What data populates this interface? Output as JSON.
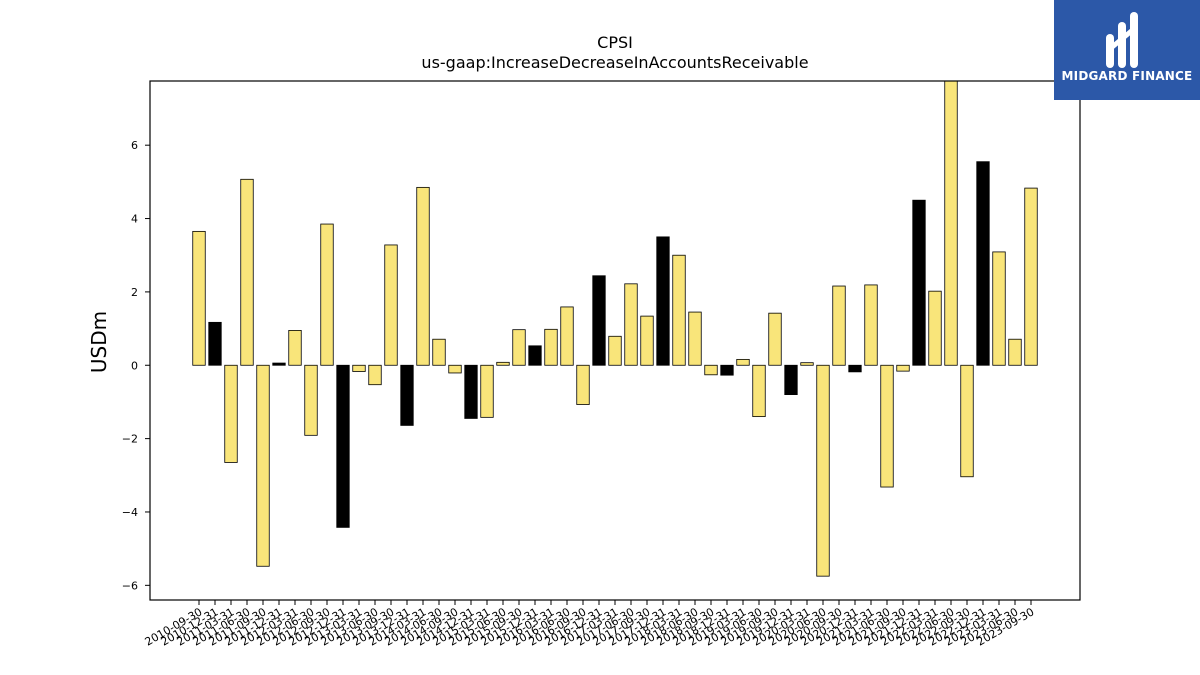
{
  "chart_data": {
    "type": "bar",
    "title": "CPSI",
    "subtitle": "us-gaap:IncreaseDecreaseInAccountsReceivable",
    "xlabel": "",
    "ylabel": "USDm",
    "ylim": [
      -6.4,
      7.75
    ],
    "yticks": [
      -6,
      -4,
      -2,
      0,
      2,
      4,
      6
    ],
    "grid": false,
    "legend": "none",
    "colors": {
      "default": "#f9e57a",
      "highlight": "#000000",
      "edge": "#000000"
    },
    "categories": [
      "2010-09-30",
      "2010-12-31",
      "2011-03-31",
      "2011-06-30",
      "2011-09-30",
      "2011-12-31",
      "2012-03-31",
      "2012-06-30",
      "2012-09-30",
      "2012-12-31",
      "2013-03-31",
      "2013-06-30",
      "2013-09-30",
      "2013-12-31",
      "2014-03-31",
      "2014-06-30",
      "2014-09-30",
      "2014-12-31",
      "2015-03-31",
      "2015-06-30",
      "2015-09-30",
      "2015-12-31",
      "2016-03-31",
      "2016-06-30",
      "2016-09-30",
      "2016-12-31",
      "2017-03-31",
      "2017-06-30",
      "2017-09-30",
      "2017-12-31",
      "2018-03-31",
      "2018-06-30",
      "2018-09-30",
      "2018-12-31",
      "2019-03-31",
      "2019-06-30",
      "2019-09-30",
      "2019-12-31",
      "2020-03-31",
      "2020-06-30",
      "2020-09-30",
      "2020-12-31",
      "2021-03-31",
      "2021-06-30",
      "2021-09-30",
      "2021-12-31",
      "2022-03-31",
      "2022-06-30",
      "2022-09-30",
      "2022-12-31",
      "2023-03-31",
      "2023-06-30",
      "2023-09-30"
    ],
    "values": [
      3.65,
      1.17,
      -2.65,
      5.07,
      -5.48,
      0.06,
      0.95,
      -1.91,
      3.85,
      -4.42,
      -0.17,
      -0.53,
      3.28,
      -1.64,
      4.85,
      0.71,
      -0.21,
      -1.45,
      -1.42,
      0.08,
      0.97,
      0.53,
      0.98,
      1.59,
      -1.07,
      2.44,
      0.79,
      2.22,
      1.34,
      3.5,
      3.0,
      1.45,
      -0.26,
      -0.27,
      0.16,
      -1.4,
      1.42,
      -0.8,
      0.07,
      -5.75,
      2.16,
      -0.18,
      2.19,
      -3.32,
      -0.16,
      4.5,
      2.02,
      7.75,
      -3.04,
      5.55,
      3.09,
      0.71,
      4.83
    ],
    "highlighted": [
      false,
      true,
      false,
      false,
      false,
      true,
      false,
      false,
      false,
      true,
      false,
      false,
      false,
      true,
      false,
      false,
      false,
      true,
      false,
      false,
      false,
      true,
      false,
      false,
      false,
      true,
      false,
      false,
      false,
      true,
      false,
      false,
      false,
      true,
      false,
      false,
      false,
      true,
      false,
      false,
      false,
      true,
      false,
      false,
      false,
      true,
      false,
      false,
      false,
      true,
      false,
      false,
      false
    ]
  },
  "logo": {
    "text": "MIDGARD FINANCE",
    "background": "#2c58a8"
  }
}
